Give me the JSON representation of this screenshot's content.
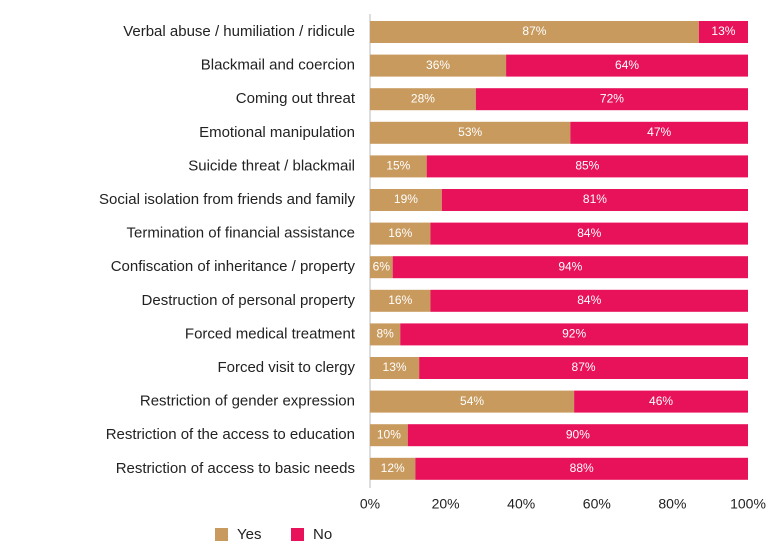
{
  "chart_data": {
    "type": "stacked_barh",
    "categories": [
      "Verbal abuse / humiliation / ridicule",
      "Blackmail and coercion",
      "Coming out threat",
      "Emotional manipulation",
      "Suicide threat / blackmail",
      "Social isolation from friends and family",
      "Termination of financial assistance",
      "Confiscation of inheritance / property",
      "Destruction of personal property",
      "Forced medical treatment",
      "Forced visit to clergy",
      "Restriction of gender expression",
      "Restriction of the access to education",
      "Restriction of access to basic needs"
    ],
    "series": [
      {
        "name": "Yes",
        "color": "#c89a5e",
        "values": [
          87,
          36,
          28,
          53,
          15,
          19,
          16,
          6,
          16,
          8,
          13,
          54,
          10,
          12
        ],
        "value_labels": [
          "87%",
          "36%",
          "28%",
          "53%",
          "15%",
          "19%",
          "16%",
          "6%",
          "16%",
          "8%",
          "13%",
          "54%",
          "10%",
          "12%"
        ]
      },
      {
        "name": "No",
        "color": "#e8125b",
        "values": [
          13,
          64,
          72,
          47,
          85,
          81,
          84,
          94,
          84,
          92,
          87,
          46,
          90,
          88
        ],
        "value_labels": [
          "13%",
          "64%",
          "72%",
          "47%",
          "85%",
          "81%",
          "84%",
          "94%",
          "84%",
          "92%",
          "87%",
          "46%",
          "90%",
          "88%"
        ]
      }
    ],
    "xlim": [
      0,
      100
    ],
    "xticks": [
      {
        "value": 0,
        "label": "0%"
      },
      {
        "value": 20,
        "label": "20%"
      },
      {
        "value": 40,
        "label": "40%"
      },
      {
        "value": 60,
        "label": "60%"
      },
      {
        "value": 80,
        "label": "80%"
      },
      {
        "value": 100,
        "label": "100%"
      }
    ],
    "legend": "bottom"
  }
}
